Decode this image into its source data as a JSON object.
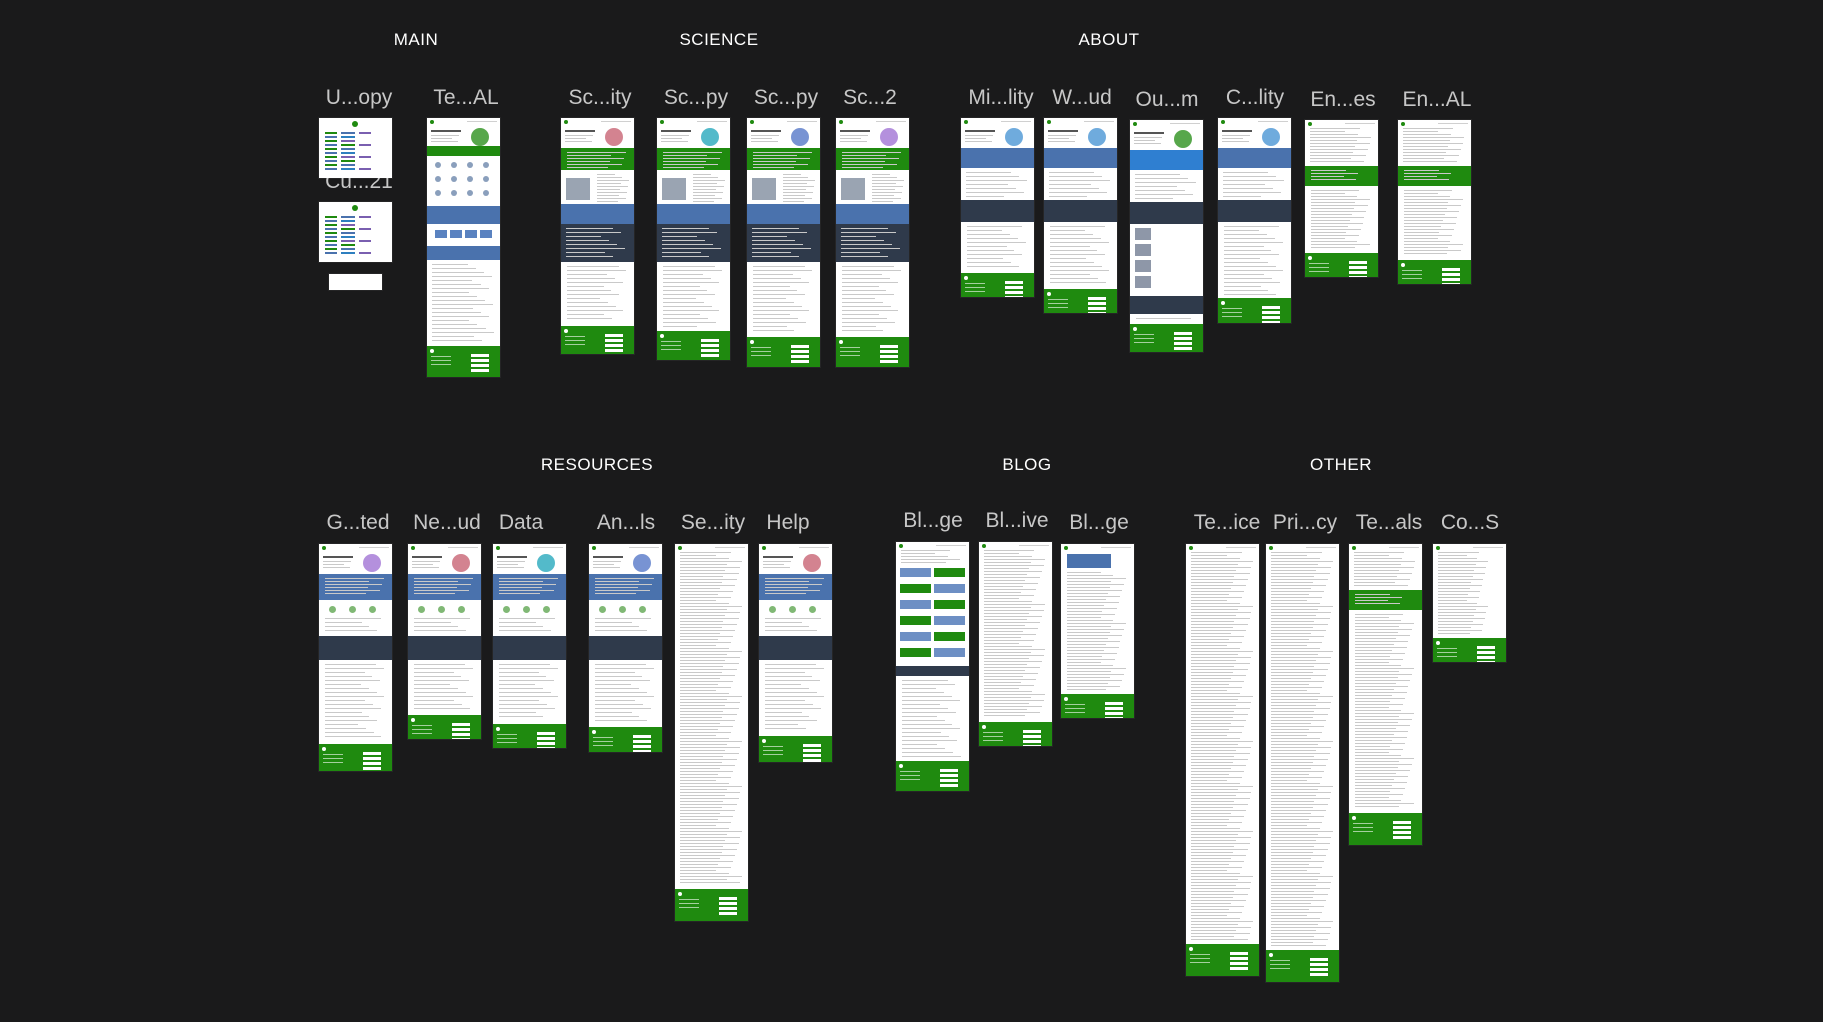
{
  "colors": {
    "background": "#1a1a1b",
    "green": "#1f8a0f",
    "blue": "#4a72ad",
    "navy": "#2f3a4b",
    "white": "#ffffff"
  },
  "sections": [
    {
      "id": "main",
      "title": "MAIN"
    },
    {
      "id": "science",
      "title": "SCIENCE"
    },
    {
      "id": "about",
      "title": "ABOUT"
    },
    {
      "id": "resources",
      "title": "RESOURCES"
    },
    {
      "id": "blog",
      "title": "BLOG"
    },
    {
      "id": "other",
      "title": "OTHER"
    }
  ],
  "frames": [
    {
      "label": "U...opy",
      "kind": "chart",
      "section": "main"
    },
    {
      "label": "Cu...21",
      "kind": "chart",
      "section": "main"
    },
    {
      "label": "Te...AL",
      "kind": "home",
      "section": "main"
    },
    {
      "label": "Sc...ity",
      "kind": "science",
      "section": "science"
    },
    {
      "label": "Sc...py",
      "kind": "science",
      "section": "science"
    },
    {
      "label": "Sc...py",
      "kind": "science",
      "section": "science"
    },
    {
      "label": "Sc...2",
      "kind": "science",
      "section": "science"
    },
    {
      "label": "Mi...lity",
      "kind": "about",
      "section": "about"
    },
    {
      "label": "W...ud",
      "kind": "about",
      "section": "about"
    },
    {
      "label": "Ou...m",
      "kind": "team",
      "section": "about"
    },
    {
      "label": "C...lity",
      "kind": "about",
      "section": "about"
    },
    {
      "label": "En...es",
      "kind": "text-green",
      "section": "about"
    },
    {
      "label": "En...AL",
      "kind": "text-green",
      "section": "about"
    },
    {
      "label": "G...ted",
      "kind": "resource",
      "section": "resources"
    },
    {
      "label": "Ne...ud",
      "kind": "resource",
      "section": "resources"
    },
    {
      "label": "Data",
      "kind": "resource",
      "section": "resources"
    },
    {
      "label": "An...ls",
      "kind": "resource",
      "section": "resources"
    },
    {
      "label": "Se...ity",
      "kind": "long-text",
      "section": "resources"
    },
    {
      "label": "Help",
      "kind": "resource",
      "section": "resources"
    },
    {
      "label": "Bl...ge",
      "kind": "blog-grid",
      "section": "blog"
    },
    {
      "label": "Bl...ive",
      "kind": "blog-list",
      "section": "blog"
    },
    {
      "label": "Bl...ge",
      "kind": "blog-post",
      "section": "blog"
    },
    {
      "label": "Te...ice",
      "kind": "long-text",
      "section": "other"
    },
    {
      "label": "Pri...cy",
      "kind": "long-text",
      "section": "other"
    },
    {
      "label": "Te...als",
      "kind": "text-green",
      "section": "other"
    },
    {
      "label": "Co...S",
      "kind": "short-text",
      "section": "other"
    }
  ]
}
